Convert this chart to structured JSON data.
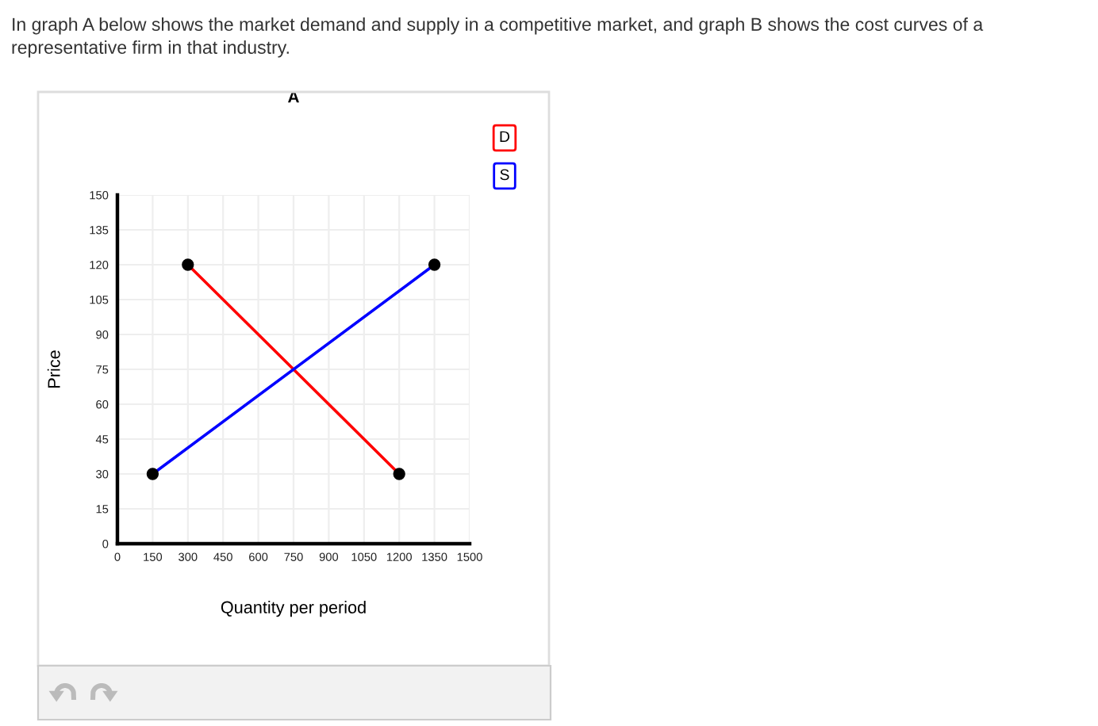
{
  "chart_data": {
    "type": "line",
    "title": "A",
    "xlabel": "Quantity per period",
    "ylabel": "Price",
    "annotations": [
      "In graph A below shows the market demand and supply in a competitive market, and graph B shows the cost curves of a representative firm in that industry."
    ],
    "series": [
      {
        "name": "D",
        "color": "#ff0000",
        "x": [
          300,
          1200
        ],
        "values": [
          120,
          30
        ]
      },
      {
        "name": "S",
        "color": "#0000ff",
        "x": [
          150,
          1350
        ],
        "values": [
          30,
          120
        ]
      }
    ],
    "xlim": [
      0,
      1500
    ],
    "ylim": [
      0,
      150
    ],
    "xticks": [
      0,
      150,
      300,
      450,
      600,
      750,
      900,
      1050,
      1200,
      1350,
      1500
    ],
    "yticks": [
      0,
      15,
      30,
      45,
      60,
      75,
      90,
      105,
      120,
      135,
      150
    ],
    "grid": true,
    "legend": "top right",
    "marker": "circle"
  }
}
